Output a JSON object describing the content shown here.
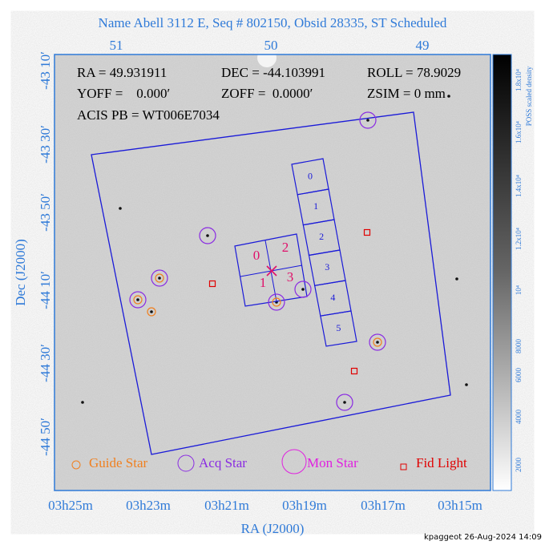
{
  "title": "Name Abell 3112 E, Seq # 802150, Obsid 28335, ST Scheduled",
  "axes": {
    "top_ticks": [
      "51",
      "50",
      "49"
    ],
    "left_ticks": [
      "-43 10′",
      "-43 30′",
      "-43 50′",
      "-44 10′",
      "-44 30′",
      "-44 50′"
    ],
    "bottom_ticks": [
      "03h25m",
      "03h23m",
      "03h21m",
      "03h19m",
      "03h17m",
      "03h15m"
    ],
    "x_label": "RA (J2000)",
    "y_label": "Dec (J2000)"
  },
  "info": [
    "RA = 49.931911",
    "DEC = -44.103991",
    "ROLL = 78.9029",
    "YOFF =    0.000′",
    "ZOFF =  0.0000′",
    "ZSIM = 0 mm",
    "ACIS PB = WT006E7034"
  ],
  "colorbar": {
    "label": "POSS scaled density",
    "ticks": [
      "1.8x10⁴",
      "1.6x10⁴",
      "1.4x10⁴",
      "1.2x10⁴",
      "10⁴",
      "8000",
      "6000",
      "4000",
      "2000"
    ]
  },
  "acis_s_chips": [
    "0",
    "1",
    "2",
    "3",
    "4",
    "5"
  ],
  "acis_i_chips": [
    "0",
    "2",
    "1",
    "3"
  ],
  "legend": [
    "Guide Star",
    "Acq Star",
    "Mon Star",
    "Fid Light"
  ],
  "footer": "kpaggeot 26-Aug-2024 14:09"
}
